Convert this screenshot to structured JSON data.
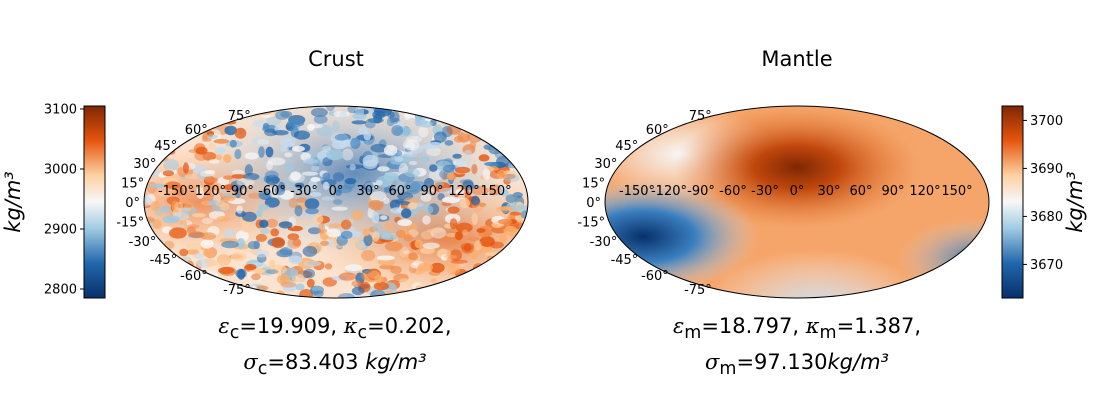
{
  "chart_data": [
    {
      "type": "heatmap",
      "projection": "mollweide",
      "title": "Crust",
      "longitude_ticks": [
        "-150°",
        "-120°",
        "-90°",
        "-60°",
        "-30°",
        "0°",
        "30°",
        "60°",
        "90°",
        "120°",
        "150°"
      ],
      "latitude_ticks": [
        "75°",
        "60°",
        "45°",
        "30°",
        "15°",
        "0°",
        "-15°",
        "-30°",
        "-45°",
        "-60°",
        "-75°"
      ],
      "colorbar": {
        "position": "left",
        "range": [
          2785,
          3105
        ],
        "ticks": [
          "3100",
          "3000",
          "2900",
          "2800"
        ],
        "tick_values": [
          3100,
          3000,
          2900,
          2800
        ],
        "label": "kg/m³",
        "colormap": "RdBu_r-orange"
      },
      "caption": {
        "line1": {
          "eps_sub": "c",
          "eps_val": "=19.909, ",
          "kappa_sub": "c",
          "kappa_val": "=0.202,"
        },
        "line2": {
          "sigma_sub": "c",
          "sigma_val": "=83.403 ",
          "unit": "kg/m³"
        }
      }
    },
    {
      "type": "heatmap",
      "projection": "mollweide",
      "title": "Mantle",
      "longitude_ticks": [
        "-150°",
        "-120°",
        "-90°",
        "-60°",
        "-30°",
        "0°",
        "30°",
        "60°",
        "90°",
        "120°",
        "150°"
      ],
      "latitude_ticks": [
        "75°",
        "60°",
        "45°",
        "30°",
        "15°",
        "0°",
        "-15°",
        "-30°",
        "-45°",
        "-60°",
        "-75°"
      ],
      "colorbar": {
        "position": "right",
        "range": [
          3663,
          3703
        ],
        "ticks": [
          "3700",
          "3690",
          "3680",
          "3670"
        ],
        "tick_values": [
          3700,
          3690,
          3680,
          3670
        ],
        "label": "kg/m³",
        "colormap": "RdBu_r-orange"
      },
      "caption": {
        "line1": {
          "eps_sub": "m",
          "eps_val": "=18.797, ",
          "kappa_sub": "m",
          "kappa_val": "=1.387,"
        },
        "line2": {
          "sigma_sub": "m",
          "sigma_val": "=97.130",
          "unit": "kg/m³"
        }
      }
    }
  ],
  "colors": {
    "dark_blue": "#08306b",
    "blue": "#2166ac",
    "light_blue": "#c6dbef",
    "white": "#f7f7f7",
    "light_orange": "#fdd0a2",
    "orange": "#e6550d",
    "dark_orange": "#7f2704"
  }
}
